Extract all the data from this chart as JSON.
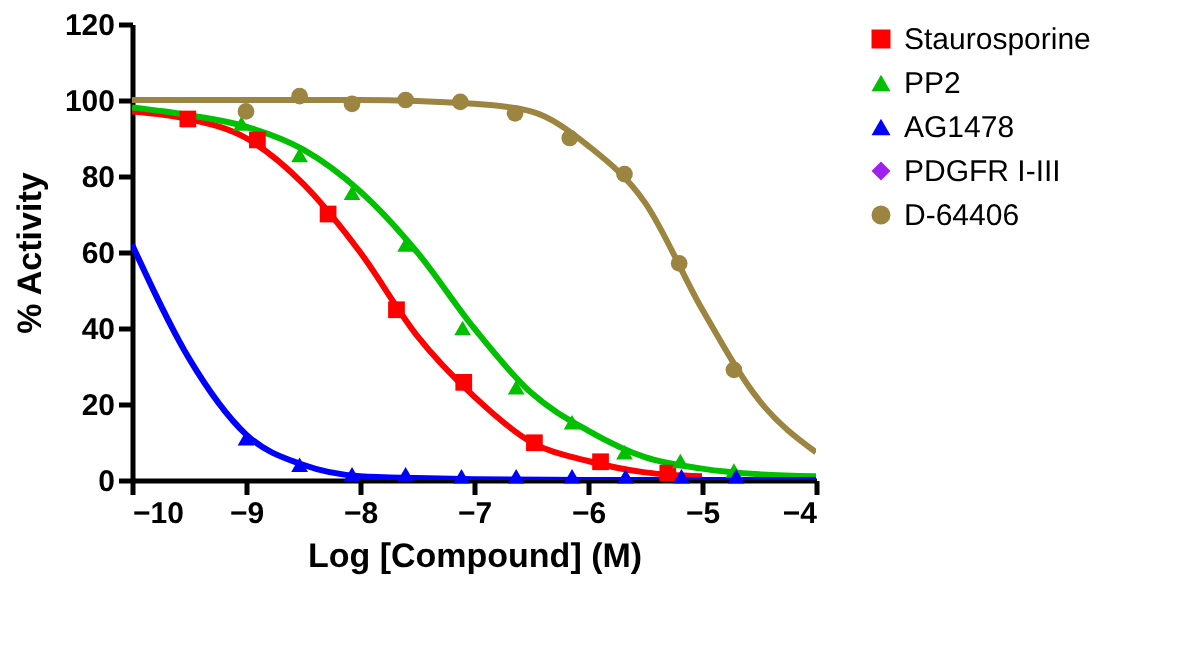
{
  "chart_data": {
    "type": "scatter",
    "xlabel": "Log [Compound] (M)",
    "ylabel": "% Activity",
    "xlim": [
      -10,
      -4
    ],
    "xticks": [
      -10,
      -9,
      -8,
      -7,
      -6,
      -5,
      -4
    ],
    "ylim": [
      0,
      120
    ],
    "yticks": [
      0,
      20,
      40,
      60,
      80,
      100,
      120
    ],
    "grid": false,
    "legend": "top right",
    "series": [
      {
        "name": "Staurosporine",
        "color": "#ff0000",
        "marker": "square",
        "x": [
          -9.51,
          -8.9,
          -8.28,
          -7.68,
          -7.09,
          -6.47,
          -5.89,
          -5.3
        ],
        "values": [
          95,
          89.5,
          70,
          44.8,
          25.7,
          9.8,
          4.8,
          1.8
        ]
      },
      {
        "name": "PP2",
        "color": "#00c000",
        "marker": "triangle",
        "x": [
          -9.04,
          -8.53,
          -8.07,
          -7.6,
          -7.1,
          -6.63,
          -6.14,
          -5.68,
          -5.19,
          -4.72
        ],
        "values": [
          93.8,
          85.5,
          75.6,
          62,
          40,
          24.4,
          15.2,
          7.3,
          5,
          2.5
        ]
      },
      {
        "name": "AG1478",
        "color": "#0000ff",
        "marker": "triangle",
        "x": [
          -9,
          -8.53,
          -8.07,
          -7.6,
          -7.11,
          -6.63,
          -6.14,
          -5.67,
          -5.18,
          -4.7
        ],
        "values": [
          11,
          4,
          1.5,
          1.5,
          1,
          1,
          1,
          1,
          1,
          1
        ]
      },
      {
        "name": "PDGFR I-III",
        "color": "#a020f0",
        "marker": "diamond"
      },
      {
        "name": "D-64406",
        "color": "#9c8540",
        "marker": "circle",
        "x": [
          -9,
          -8.53,
          -8.07,
          -7.6,
          -7.12,
          -6.64,
          -6.16,
          -5.68,
          -5.2,
          -4.72
        ],
        "values": [
          97,
          101,
          99,
          100,
          99.5,
          96.5,
          90,
          80.5,
          57,
          29
        ]
      },
      {
        "color": "#ff0000",
        "type": "line",
        "marker": "none",
        "x": [
          -10,
          -9.5,
          -9,
          -8.5,
          -8,
          -7.5,
          -7,
          -6.5,
          -6,
          -5.5,
          -5
        ],
        "values": [
          97,
          95,
          90,
          78,
          60,
          38,
          22,
          10,
          5,
          2,
          1
        ]
      },
      {
        "color": "#00c000",
        "type": "line",
        "marker": "none",
        "x": [
          -10,
          -9.5,
          -9,
          -8.5,
          -8,
          -7.5,
          -7,
          -6.5,
          -6,
          -5.5,
          -5,
          -4.5,
          -4
        ],
        "values": [
          98,
          96,
          93,
          87,
          76,
          60,
          40,
          23,
          13,
          6,
          3,
          1.5,
          1
        ]
      },
      {
        "color": "#0000ff",
        "type": "line",
        "marker": "none",
        "x": [
          -10,
          -9.5,
          -9,
          -8.5,
          -8,
          -7.5,
          -7,
          -6,
          -5,
          -4
        ],
        "values": [
          62,
          32,
          12,
          4,
          1,
          0.5,
          0.2,
          0,
          0,
          0
        ]
      },
      {
        "color": "#9c8540",
        "type": "line",
        "marker": "none",
        "x": [
          -10,
          -9,
          -8,
          -7,
          -6.5,
          -6,
          -5.5,
          -5,
          -4.5,
          -4
        ],
        "values": [
          100,
          100,
          100,
          99,
          97,
          88,
          73,
          45,
          21,
          7.3
        ]
      }
    ]
  }
}
